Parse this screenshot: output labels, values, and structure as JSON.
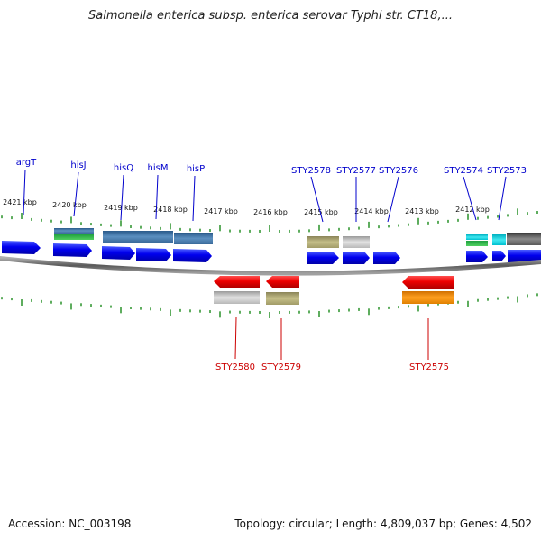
{
  "title": "Salmonella enterica subsp. enterica serovar Typhi str. CT18,...",
  "footer": {
    "accession": "Accession: NC_003198",
    "summary": "Topology: circular; Length: 4,809,037 bp; Genes: 4,502"
  },
  "colors": {
    "top_label": "#0000cc",
    "bottom_label": "#cc0000",
    "tick": "#1a8a1a",
    "backbone": "#808080"
  },
  "kbp_labels": [
    "2421 kbp",
    "2420 kbp",
    "2419 kbp",
    "2418 kbp",
    "2417 kbp",
    "2416 kbp",
    "2415 kbp",
    "2414 kbp",
    "2413 kbp",
    "2412 kbp"
  ],
  "top_genes": [
    "argT",
    "hisJ",
    "hisQ",
    "hisM",
    "hisP",
    "STY2578",
    "STY2577",
    "STY2576",
    "STY2574",
    "STY2573"
  ],
  "bottom_genes": [
    "STY2580",
    "STY2579",
    "STY2575"
  ]
}
